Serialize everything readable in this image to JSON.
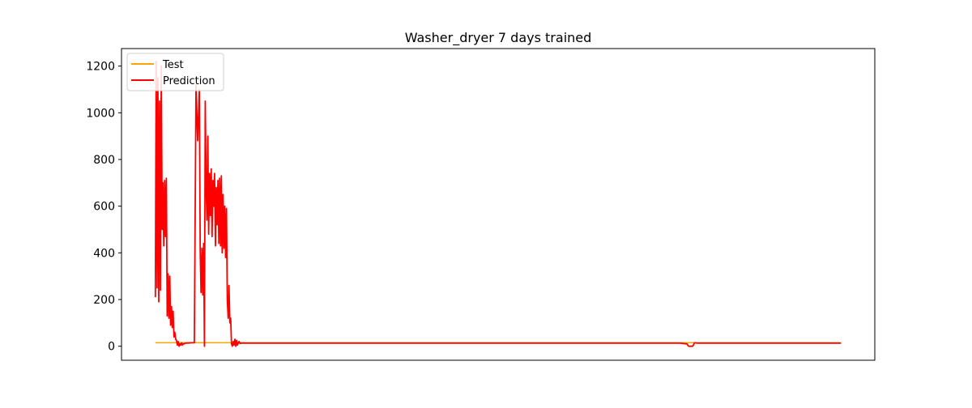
{
  "chart_data": {
    "type": "line",
    "title": "Washer_dryer 7 days trained",
    "xlabel": "",
    "ylabel": "",
    "ylim": [
      -60,
      1275
    ],
    "xlim": [
      -40,
      850
    ],
    "x_ticks_visible": false,
    "yticks": [
      0,
      200,
      400,
      600,
      800,
      1000,
      1200
    ],
    "grid": false,
    "legend_position": "top-left",
    "colors": {
      "test": "#ffa500",
      "prediction": "#ff0000",
      "axis": "#000000"
    },
    "series": [
      {
        "name": "Test",
        "color": "#ffa500",
        "x": [
          0,
          810
        ],
        "values": [
          15,
          15
        ]
      },
      {
        "name": "Prediction",
        "color": "#ff0000",
        "x": [
          0,
          1,
          2,
          3,
          4,
          5,
          6,
          7,
          8,
          9,
          10,
          11,
          12,
          13,
          14,
          15,
          16,
          17,
          18,
          19,
          20,
          21,
          22,
          23,
          24,
          25,
          26,
          27,
          28,
          29,
          30,
          31,
          32,
          33,
          34,
          35,
          36,
          37,
          38,
          40,
          42,
          44,
          46,
          48,
          50,
          52,
          53,
          54,
          55,
          56,
          57,
          58,
          59,
          60,
          61,
          62,
          63,
          64,
          65,
          66,
          67,
          68,
          69,
          70,
          71,
          72,
          73,
          74,
          75,
          76,
          77,
          78,
          79,
          80,
          81,
          82,
          83,
          84,
          85,
          86,
          87,
          88,
          89,
          90,
          91,
          92,
          93,
          94,
          95,
          96,
          97,
          98,
          99,
          100,
          102,
          104,
          106,
          110,
          200,
          300,
          400,
          500,
          600,
          620,
          628,
          630,
          632,
          635,
          637,
          640,
          700,
          810
        ],
        "values": [
          210,
          1220,
          250,
          1150,
          190,
          1050,
          240,
          1200,
          500,
          700,
          430,
          710,
          470,
          720,
          130,
          310,
          120,
          300,
          90,
          170,
          80,
          150,
          40,
          60,
          30,
          25,
          5,
          20,
          0,
          10,
          5,
          15,
          5,
          10,
          10,
          12,
          13,
          14,
          14,
          14,
          15,
          15,
          15,
          1120,
          880,
          1100,
          400,
          230,
          420,
          220,
          440,
          0,
          1050,
          680,
          540,
          900,
          480,
          740,
          560,
          760,
          470,
          710,
          600,
          740,
          430,
          680,
          520,
          710,
          440,
          720,
          430,
          730,
          400,
          650,
          420,
          600,
          380,
          590,
          200,
          120,
          260,
          100,
          120,
          10,
          0,
          20,
          5,
          30,
          0,
          25,
          5,
          15,
          20,
          12,
          13,
          14,
          13,
          13,
          13,
          13,
          13,
          13,
          13,
          13,
          10,
          0,
          0,
          0,
          15,
          13,
          13,
          13
        ]
      }
    ]
  }
}
